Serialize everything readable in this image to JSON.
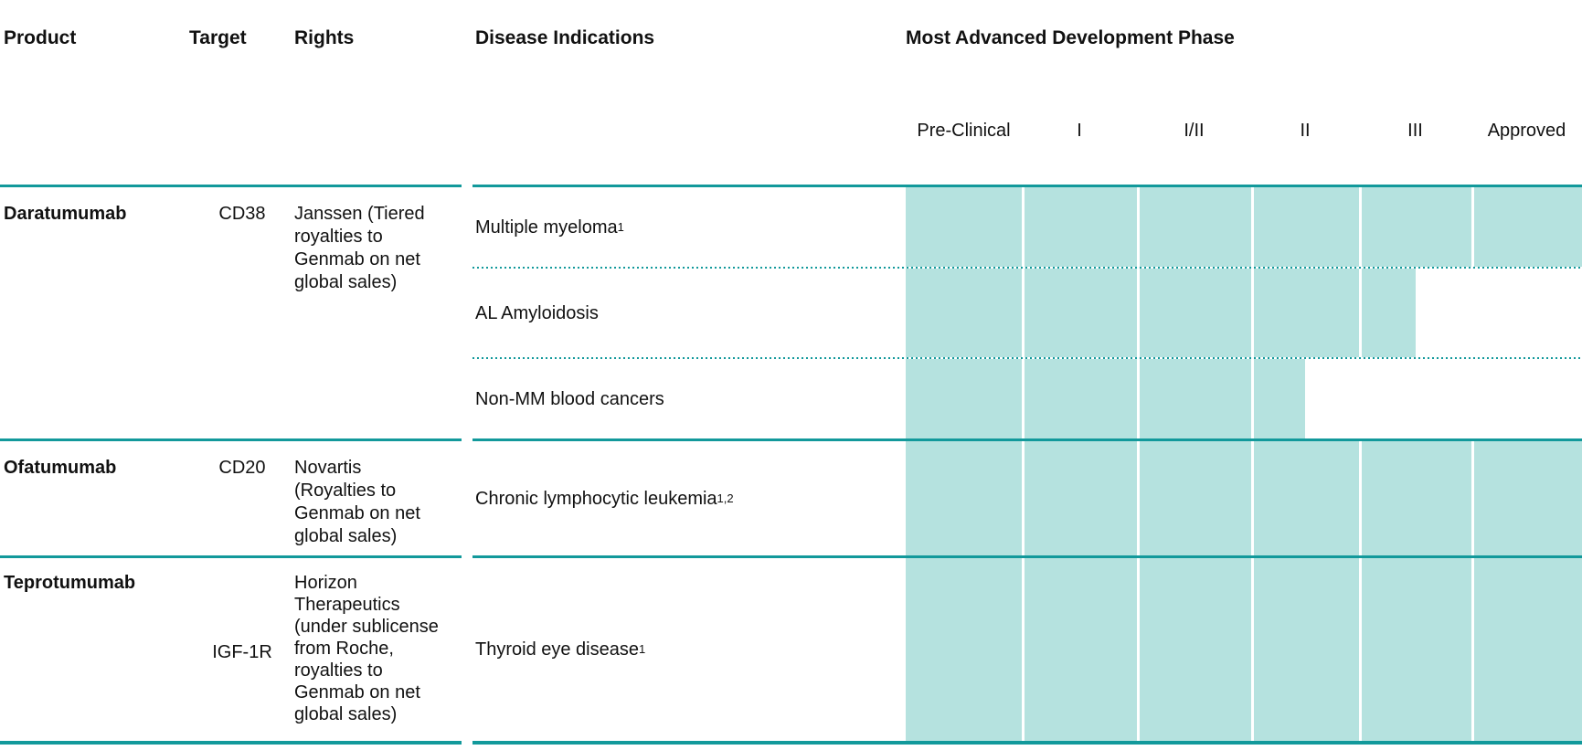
{
  "title_row": {
    "product": "Product",
    "target": "Target",
    "rights": "Rights",
    "indications": "Disease Indications",
    "phase_header": "Most Advanced Development Phase"
  },
  "phases": [
    "Pre-Clinical",
    "I",
    "I/II",
    "II",
    "III",
    "Approved"
  ],
  "groups": [
    {
      "product": "Daratumumab",
      "target": "CD38",
      "rights": "Janssen (Tiered\nroyalties to\nGenmab on net\nglobal sales)",
      "indications": [
        {
          "label": "Multiple myeloma",
          "sup": "1",
          "phase": "Approved"
        },
        {
          "label": "AL Amyloidosis",
          "sup": "",
          "phase": "III"
        },
        {
          "label": "Non-MM blood cancers",
          "sup": "",
          "phase": "II"
        }
      ]
    },
    {
      "product": "Ofatumumab",
      "target": "CD20",
      "rights": "Novartis\n(Royalties to\nGenmab on net\nglobal sales)",
      "indications": [
        {
          "label": "Chronic lymphocytic leukemia",
          "sup": "1,2",
          "phase": "Approved"
        }
      ]
    },
    {
      "product": "Teprotumumab",
      "target": "IGF-1R",
      "rights": "Horizon\nTherapeutics\n(under sublicense\nfrom Roche,\nroyalties to\nGenmab on net\nglobal sales)",
      "indications": [
        {
          "label": "Thyroid eye disease",
          "sup": "1",
          "phase": "Approved"
        }
      ]
    }
  ],
  "colors": {
    "rule": "#12999b",
    "bar_fill": "#b5e2df"
  },
  "chart_data": {
    "type": "bar",
    "title": "Most Advanced Development Phase",
    "x_scale": [
      "Pre-Clinical",
      "I",
      "I/II",
      "II",
      "III",
      "Approved"
    ],
    "legend_position": "none",
    "rows": [
      {
        "product": "Daratumumab",
        "target": "CD38",
        "rights": "Janssen (Tiered royalties to Genmab on net global sales)",
        "indication": "Multiple myeloma¹",
        "most_advanced_phase": "Approved"
      },
      {
        "product": "Daratumumab",
        "target": "CD38",
        "rights": "Janssen (Tiered royalties to Genmab on net global sales)",
        "indication": "AL Amyloidosis",
        "most_advanced_phase": "III"
      },
      {
        "product": "Daratumumab",
        "target": "CD38",
        "rights": "Janssen (Tiered royalties to Genmab on net global sales)",
        "indication": "Non-MM blood cancers",
        "most_advanced_phase": "II"
      },
      {
        "product": "Ofatumumab",
        "target": "CD20",
        "rights": "Novartis (Royalties to Genmab on net global sales)",
        "indication": "Chronic lymphocytic leukemia¹,²",
        "most_advanced_phase": "Approved"
      },
      {
        "product": "Teprotumumab",
        "target": "IGF-1R",
        "rights": "Horizon Therapeutics (under sublicense from Roche, royalties to Genmab on net global sales)",
        "indication": "Thyroid eye disease¹",
        "most_advanced_phase": "Approved"
      }
    ]
  }
}
